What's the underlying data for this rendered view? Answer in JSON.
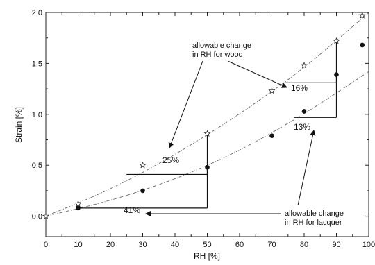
{
  "chart_data": {
    "type": "scatter",
    "xlabel": "RH [%]",
    "ylabel": "Strain [%]",
    "xlim": [
      0,
      100
    ],
    "ylim": [
      -0.2,
      2.0
    ],
    "x_ticks": [
      "0",
      "10",
      "20",
      "30",
      "40",
      "50",
      "60",
      "70",
      "80",
      "90",
      "100"
    ],
    "y_ticks": [
      "0.0",
      "0.5",
      "1.0",
      "1.5",
      "2.0"
    ],
    "grid": false,
    "series": [
      {
        "marker": "star",
        "color": "#333333",
        "x": [
          0,
          10,
          30,
          50,
          70,
          80,
          90,
          98
        ],
        "y": [
          0.0,
          0.12,
          0.5,
          0.81,
          1.23,
          1.48,
          1.72,
          1.97
        ]
      },
      {
        "marker": "circle",
        "color": "#111111",
        "x": [
          10,
          30,
          50,
          70,
          80,
          90,
          98
        ],
        "y": [
          0.08,
          0.25,
          0.48,
          0.79,
          1.03,
          1.39,
          1.68
        ]
      }
    ],
    "fit_curves": [
      {
        "x": [
          0,
          20,
          40,
          60,
          80,
          100
        ],
        "y": [
          0.0,
          0.26,
          0.6,
          1.0,
          1.45,
          2.0
        ]
      },
      {
        "x": [
          0,
          20,
          40,
          60,
          80,
          100
        ],
        "y": [
          0.0,
          0.15,
          0.36,
          0.64,
          1.0,
          1.42
        ]
      }
    ],
    "annotations": {
      "wood_label": [
        "allowable change",
        "in RH for wood"
      ],
      "lacquer_label": [
        "allowable change",
        "in RH for lacquer"
      ],
      "percentages": [
        "16%",
        "25%",
        "13%",
        "41%"
      ]
    }
  }
}
